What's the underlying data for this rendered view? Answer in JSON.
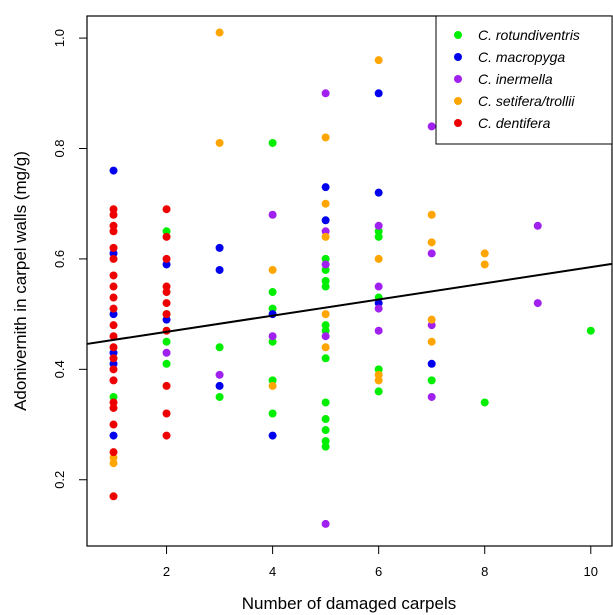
{
  "chart_data": {
    "type": "scatter",
    "xlabel": "Number of damaged carpels",
    "ylabel": "Adonivernith in carpel walls (mg/g)",
    "xlim": [
      0.5,
      10.4
    ],
    "ylim": [
      0.08,
      1.04
    ],
    "xticks": [
      2,
      4,
      6,
      8,
      10
    ],
    "yticks": [
      0.2,
      0.4,
      0.6,
      0.8,
      1.0
    ],
    "ytick_labels": [
      "0.2",
      "0.4",
      "0.6",
      "0.8",
      "1.0"
    ],
    "grid": false,
    "legend_position": "top-right",
    "series": [
      {
        "name": "C. rotundiventris",
        "color": "#00ee00",
        "points": [
          [
            1,
            0.35
          ],
          [
            2,
            0.65
          ],
          [
            2,
            0.5
          ],
          [
            2,
            0.45
          ],
          [
            2,
            0.41
          ],
          [
            3,
            0.44
          ],
          [
            3,
            0.35
          ],
          [
            4,
            0.81
          ],
          [
            4,
            0.54
          ],
          [
            4,
            0.51
          ],
          [
            4,
            0.45
          ],
          [
            4,
            0.38
          ],
          [
            4,
            0.32
          ],
          [
            5,
            0.6
          ],
          [
            5,
            0.58
          ],
          [
            5,
            0.56
          ],
          [
            5,
            0.55
          ],
          [
            5,
            0.48
          ],
          [
            5,
            0.47
          ],
          [
            5,
            0.42
          ],
          [
            5,
            0.34
          ],
          [
            5,
            0.31
          ],
          [
            5,
            0.29
          ],
          [
            5,
            0.27
          ],
          [
            5,
            0.26
          ],
          [
            6,
            0.65
          ],
          [
            6,
            0.64
          ],
          [
            6,
            0.53
          ],
          [
            6,
            0.4
          ],
          [
            6,
            0.36
          ],
          [
            7,
            0.38
          ],
          [
            8,
            0.34
          ],
          [
            10,
            0.47
          ]
        ]
      },
      {
        "name": "C. macropyga",
        "color": "#0000ee",
        "points": [
          [
            1,
            0.76
          ],
          [
            1,
            0.61
          ],
          [
            1,
            0.5
          ],
          [
            1,
            0.43
          ],
          [
            1,
            0.41
          ],
          [
            1,
            0.28
          ],
          [
            2,
            0.59
          ],
          [
            2,
            0.49
          ],
          [
            3,
            0.62
          ],
          [
            3,
            0.58
          ],
          [
            3,
            0.37
          ],
          [
            4,
            0.5
          ],
          [
            4,
            0.28
          ],
          [
            5,
            0.73
          ],
          [
            5,
            0.67
          ],
          [
            6,
            0.9
          ],
          [
            6,
            0.72
          ],
          [
            6,
            0.52
          ],
          [
            7,
            0.41
          ]
        ]
      },
      {
        "name": "C. inermella",
        "color": "#a020f0",
        "points": [
          [
            2,
            0.43
          ],
          [
            3,
            0.39
          ],
          [
            4,
            0.68
          ],
          [
            4,
            0.46
          ],
          [
            5,
            0.9
          ],
          [
            5,
            0.65
          ],
          [
            5,
            0.59
          ],
          [
            5,
            0.46
          ],
          [
            5,
            0.12
          ],
          [
            6,
            0.66
          ],
          [
            6,
            0.55
          ],
          [
            6,
            0.51
          ],
          [
            6,
            0.47
          ],
          [
            7,
            0.84
          ],
          [
            7,
            0.61
          ],
          [
            7,
            0.48
          ],
          [
            7,
            0.35
          ],
          [
            9,
            0.66
          ],
          [
            9,
            0.52
          ]
        ]
      },
      {
        "name": "C. setifera/trollii",
        "color": "#ffa500",
        "points": [
          [
            1,
            0.24
          ],
          [
            1,
            0.23
          ],
          [
            3,
            1.01
          ],
          [
            3,
            0.81
          ],
          [
            4,
            0.58
          ],
          [
            4,
            0.37
          ],
          [
            5,
            0.82
          ],
          [
            5,
            0.7
          ],
          [
            5,
            0.64
          ],
          [
            5,
            0.5
          ],
          [
            5,
            0.44
          ],
          [
            6,
            0.96
          ],
          [
            6,
            0.6
          ],
          [
            6,
            0.39
          ],
          [
            6,
            0.38
          ],
          [
            7,
            0.68
          ],
          [
            7,
            0.63
          ],
          [
            7,
            0.49
          ],
          [
            7,
            0.45
          ],
          [
            8,
            0.61
          ],
          [
            8,
            0.59
          ]
        ]
      },
      {
        "name": "C. dentifera",
        "color": "#ee0000",
        "points": [
          [
            1,
            0.69
          ],
          [
            1,
            0.68
          ],
          [
            1,
            0.66
          ],
          [
            1,
            0.65
          ],
          [
            1,
            0.62
          ],
          [
            1,
            0.6
          ],
          [
            1,
            0.57
          ],
          [
            1,
            0.55
          ],
          [
            1,
            0.53
          ],
          [
            1,
            0.51
          ],
          [
            1,
            0.48
          ],
          [
            1,
            0.46
          ],
          [
            1,
            0.44
          ],
          [
            1,
            0.42
          ],
          [
            1,
            0.4
          ],
          [
            1,
            0.38
          ],
          [
            1,
            0.34
          ],
          [
            1,
            0.33
          ],
          [
            1,
            0.3
          ],
          [
            1,
            0.25
          ],
          [
            1,
            0.17
          ],
          [
            2,
            0.69
          ],
          [
            2,
            0.64
          ],
          [
            2,
            0.6
          ],
          [
            2,
            0.55
          ],
          [
            2,
            0.54
          ],
          [
            2,
            0.52
          ],
          [
            2,
            0.5
          ],
          [
            2,
            0.47
          ],
          [
            2,
            0.37
          ],
          [
            2,
            0.32
          ],
          [
            2,
            0.28
          ]
        ]
      }
    ],
    "trend_line": {
      "x": [
        0.5,
        10.4
      ],
      "y": [
        0.446,
        0.591
      ]
    }
  }
}
